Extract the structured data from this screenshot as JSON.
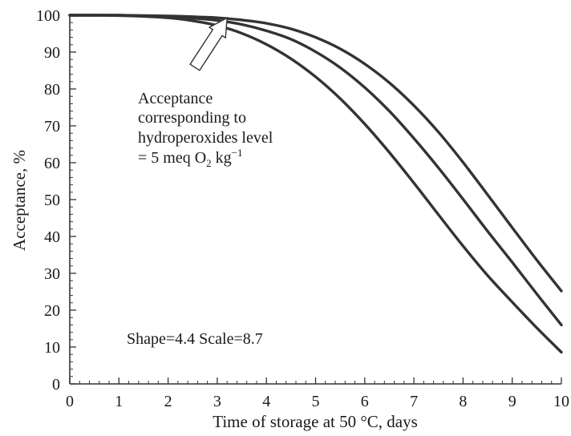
{
  "chart_data": {
    "type": "line",
    "title": "",
    "xlabel": "Time of storage at 50 °C, days",
    "ylabel": "Acceptance, %",
    "xlim": [
      0,
      10
    ],
    "ylim": [
      0,
      100
    ],
    "x_ticks": [
      "0",
      "1",
      "2",
      "3",
      "4",
      "5",
      "6",
      "7",
      "8",
      "9",
      "10"
    ],
    "y_ticks": [
      "0",
      "10",
      "20",
      "30",
      "40",
      "50",
      "60",
      "70",
      "80",
      "90",
      "100"
    ],
    "grid": false,
    "legend": "none",
    "line_color": "#333333",
    "x": [
      0,
      0.5,
      1,
      1.5,
      2,
      2.5,
      3,
      3.5,
      4,
      4.5,
      5,
      5.5,
      6,
      6.5,
      7,
      7.5,
      8,
      8.5,
      9,
      9.5,
      10
    ],
    "series": [
      {
        "values": [
          100,
          100,
          99.9,
          99.7,
          99.3,
          98.5,
          97.2,
          95.1,
          92.1,
          88.2,
          83.3,
          77.4,
          70.5,
          62.8,
          54.5,
          45.9,
          37.4,
          29.4,
          22.2,
          15.2,
          8.6
        ]
      },
      {
        "values": [
          100,
          100,
          100,
          99.8,
          99.6,
          99.2,
          98.6,
          97.5,
          95.8,
          93.5,
          90.1,
          85.8,
          80.4,
          74.0,
          66.6,
          58.6,
          50.1,
          41.4,
          33.0,
          24.4,
          16.0
        ]
      },
      {
        "values": [
          100,
          100,
          100,
          99.9,
          99.8,
          99.6,
          99.3,
          98.7,
          97.8,
          96.3,
          94.0,
          90.9,
          86.8,
          81.7,
          75.5,
          68.3,
          60.1,
          51.3,
          42.4,
          33.6,
          25.2
        ]
      }
    ],
    "annotations": {
      "arrow_text": [
        "Acceptance",
        "corresponding to",
        "hydroperoxides level"
      ],
      "arrow_text_formula": {
        "prefix": "= 5 meq O",
        "subscript": "2",
        "middle": " kg",
        "superscript": "−1"
      },
      "arrow_target": {
        "x": 3.2,
        "y": 99.3
      },
      "shape_scale": "Shape=4.4 Scale=8.7"
    }
  }
}
